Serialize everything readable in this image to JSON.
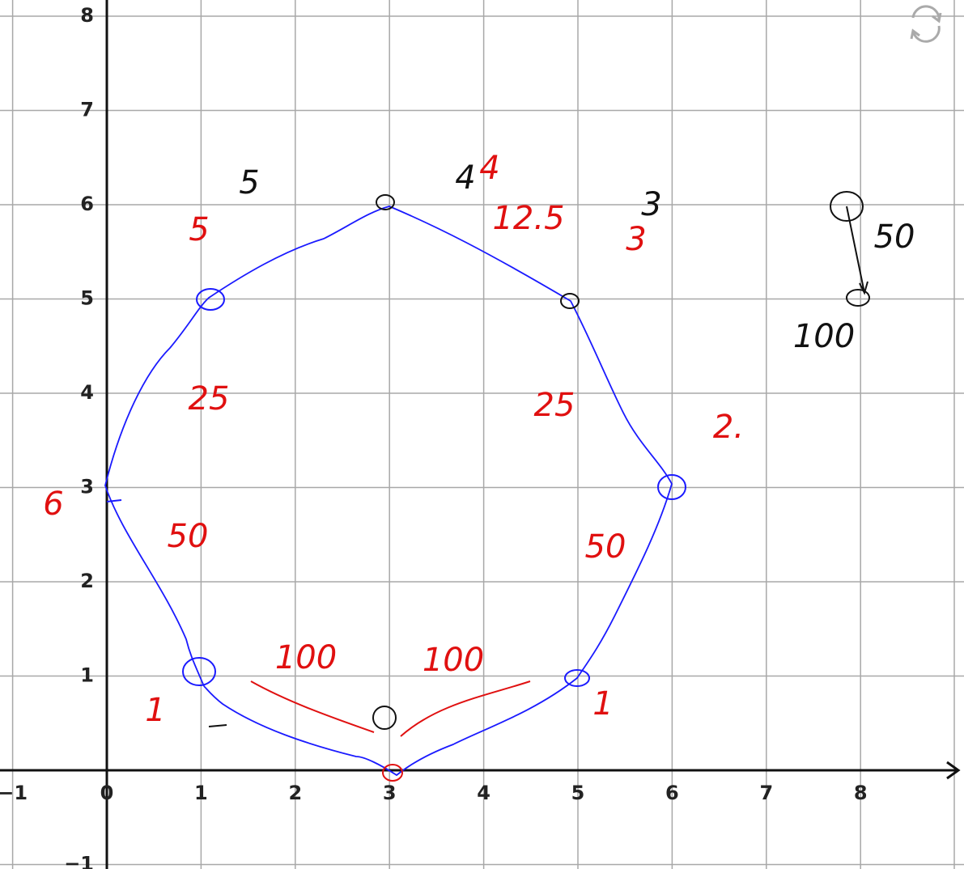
{
  "axes": {
    "x_ticks": [
      {
        "value": -1,
        "label": "−1"
      },
      0,
      1,
      2,
      3,
      4,
      5,
      6,
      7,
      8
    ],
    "y_ticks": [
      {
        "value": -1,
        "label": "−1"
      },
      1,
      2,
      3,
      4,
      5,
      6,
      7,
      8
    ]
  },
  "annotations": [
    "5",
    "4",
    "3",
    "50",
    "100",
    "5",
    "4",
    "12.5",
    "3",
    "2.",
    "25",
    "25",
    "6",
    "50",
    "50",
    "100",
    "100",
    "1",
    "1"
  ]
}
